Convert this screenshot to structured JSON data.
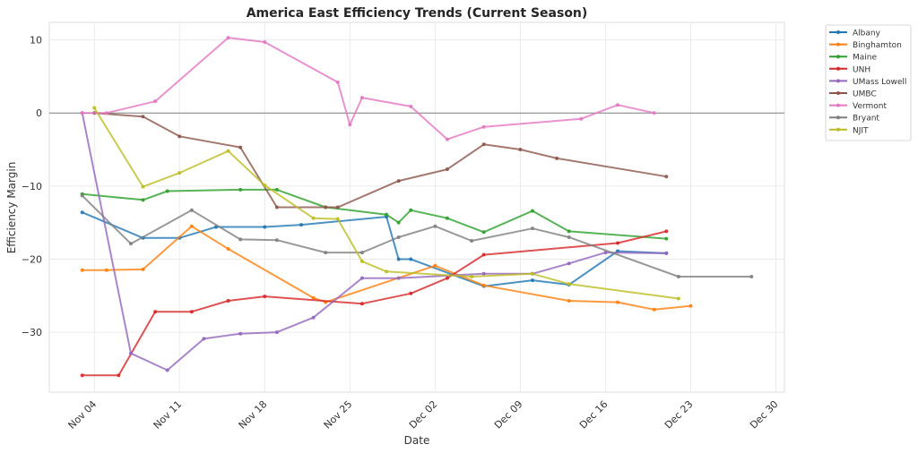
{
  "chart_data": {
    "type": "line",
    "title": "America East Efficiency Trends (Current Season)",
    "xlabel": "Date",
    "ylabel": "Efficiency Margin",
    "x_unit": "days since Nov 04",
    "xlim": [
      -3.7,
      56.7
    ],
    "ylim": [
      -38.2,
      12.4
    ],
    "x_ticks": [
      {
        "day": 0,
        "label": "Nov 04"
      },
      {
        "day": 7,
        "label": "Nov 11"
      },
      {
        "day": 14,
        "label": "Nov 18"
      },
      {
        "day": 21,
        "label": "Nov 25"
      },
      {
        "day": 28,
        "label": "Dec 02"
      },
      {
        "day": 35,
        "label": "Dec 09"
      },
      {
        "day": 42,
        "label": "Dec 16"
      },
      {
        "day": 49,
        "label": "Dec 23"
      },
      {
        "day": 56,
        "label": "Dec 30"
      }
    ],
    "y_ticks": [
      {
        "value": 10,
        "label": "10"
      },
      {
        "value": 0,
        "label": "0"
      },
      {
        "value": -10,
        "label": "−10"
      },
      {
        "value": -20,
        "label": "−20"
      },
      {
        "value": -30,
        "label": "−30"
      }
    ],
    "reference_line": 0,
    "grid": true,
    "legend_position": "outside-top-right",
    "series": [
      {
        "name": "Albany",
        "color": "#1f77b4",
        "x": [
          -1,
          4,
          7,
          10,
          14,
          17,
          24,
          25,
          26,
          32,
          36,
          39,
          43,
          47
        ],
        "y": [
          -13.6,
          -17.1,
          -17.1,
          -15.6,
          -15.6,
          -15.3,
          -14.2,
          -20.0,
          -20.0,
          -23.7,
          -22.9,
          -23.5,
          -18.9,
          -19.2
        ]
      },
      {
        "name": "Binghamton",
        "color": "#ff7f0e",
        "x": [
          -1,
          1,
          4,
          8,
          11,
          18,
          19,
          28,
          32,
          39,
          43,
          46,
          49
        ],
        "y": [
          -21.5,
          -21.5,
          -21.4,
          -15.5,
          -18.6,
          -25.3,
          -25.9,
          -20.9,
          -23.6,
          -25.7,
          -25.9,
          -26.9,
          -26.4
        ]
      },
      {
        "name": "Maine",
        "color": "#2ca02c",
        "x": [
          -1,
          4,
          6,
          12,
          15,
          19,
          24,
          25,
          26,
          29,
          32,
          36,
          39,
          47
        ],
        "y": [
          -11.1,
          -11.9,
          -10.7,
          -10.5,
          -10.5,
          -12.9,
          -13.9,
          -15.0,
          -13.3,
          -14.4,
          -16.3,
          -13.4,
          -16.2,
          -17.2
        ]
      },
      {
        "name": "UNH",
        "color": "#d62728",
        "x": [
          -1,
          2,
          5,
          8,
          11,
          14,
          22,
          26,
          29,
          32,
          43,
          47
        ],
        "y": [
          -35.9,
          -35.9,
          -27.2,
          -27.2,
          -25.7,
          -25.1,
          -26.1,
          -24.7,
          -22.6,
          -19.4,
          -17.8,
          -16.2
        ]
      },
      {
        "name": "UMass Lowell",
        "color": "#9467bd",
        "x": [
          -1,
          3,
          6,
          9,
          12,
          15,
          18,
          22,
          25,
          32,
          36,
          39,
          42,
          47
        ],
        "y": [
          0.0,
          -32.9,
          -35.2,
          -30.9,
          -30.2,
          -30.0,
          -28.0,
          -22.6,
          -22.6,
          -22.0,
          -22.0,
          -20.6,
          -19.1,
          -19.2
        ]
      },
      {
        "name": "UMBC",
        "color": "#8c564b",
        "x": [
          0,
          4,
          7,
          12,
          15,
          19,
          20,
          25,
          29,
          32,
          35,
          38,
          47
        ],
        "y": [
          0.0,
          -0.5,
          -3.2,
          -4.7,
          -12.9,
          -12.9,
          -12.9,
          -9.3,
          -7.7,
          -4.3,
          -5.0,
          -6.2,
          -8.7
        ]
      },
      {
        "name": "Vermont",
        "color": "#e377c2",
        "x": [
          -1,
          1,
          5,
          11,
          14,
          20,
          21,
          22,
          26,
          29,
          32,
          40,
          43,
          46
        ],
        "y": [
          0.0,
          0.0,
          1.6,
          10.3,
          9.7,
          4.2,
          -1.6,
          2.1,
          0.9,
          -3.6,
          -1.9,
          -0.8,
          1.1,
          0.0
        ]
      },
      {
        "name": "Bryant",
        "color": "#7f7f7f",
        "x": [
          -1,
          3,
          8,
          12,
          15,
          19,
          22,
          25,
          28,
          31,
          36,
          39,
          48,
          54
        ],
        "y": [
          -11.3,
          -17.9,
          -13.3,
          -17.3,
          -17.4,
          -19.1,
          -19.1,
          -17.0,
          -15.5,
          -17.5,
          -15.8,
          -17.0,
          -22.4,
          -22.4
        ]
      },
      {
        "name": "NJIT",
        "color": "#bcbd22",
        "x": [
          0,
          4,
          7,
          11,
          14,
          18,
          20,
          22,
          24,
          31,
          36,
          39,
          48
        ],
        "y": [
          0.7,
          -10.1,
          -8.2,
          -5.2,
          -9.9,
          -14.4,
          -14.5,
          -20.3,
          -21.7,
          -22.4,
          -22.0,
          -23.4,
          -25.4
        ]
      }
    ]
  }
}
